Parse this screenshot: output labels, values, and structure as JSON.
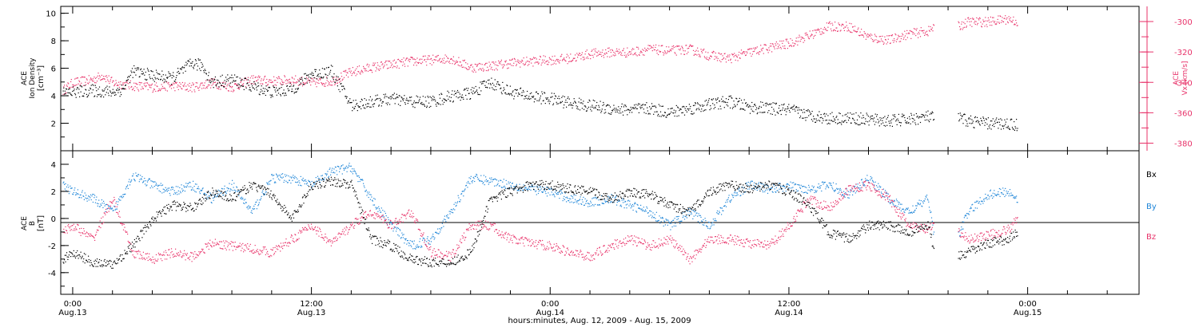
{
  "colors": {
    "black": "#000000",
    "pink": "#e8336a",
    "blue": "#1f86d8"
  },
  "x_axis": {
    "title": "hours:minutes, Aug. 12, 2009 - Aug. 15, 2009",
    "ticks": [
      {
        "line1": "0:00",
        "line2": "Aug.13"
      },
      {
        "line1": "12:00",
        "line2": "Aug.13"
      },
      {
        "line1": "0:00",
        "line2": "Aug.14"
      },
      {
        "line1": "12:00",
        "line2": "Aug.14"
      },
      {
        "line1": "0:00",
        "line2": "Aug.15"
      }
    ]
  },
  "chart_data": [
    {
      "type": "scatter",
      "x_unit": "hours from 2009-08-13 00:00",
      "xlim": [
        -0.6,
        53.6
      ],
      "left_axis": {
        "label_lines": [
          "ACE",
          "Ion Density",
          "[cm⁻³]"
        ],
        "ylim": [
          0,
          10.5
        ],
        "ticks": [
          2,
          4,
          6,
          8,
          10
        ]
      },
      "right_axis": {
        "label_lines": [
          "ACE",
          "Vx [km/s]"
        ],
        "ylim": [
          -385,
          -290
        ],
        "ticks": [
          -300,
          -320,
          -340,
          -360,
          -380
        ]
      },
      "series": [
        {
          "axis": "left",
          "color": "black",
          "x": [
            -0.5,
            0,
            1,
            2,
            2.5,
            3,
            4,
            5,
            6,
            6.5,
            7,
            8,
            9,
            10,
            11,
            12,
            13,
            14,
            15,
            16,
            17,
            18,
            19,
            20,
            21,
            22,
            23,
            24,
            25,
            26,
            27,
            28,
            29,
            30,
            31,
            32,
            33,
            34,
            35,
            36,
            37,
            38,
            39,
            40,
            41,
            42,
            43,
            43.3,
            44.5,
            45,
            46,
            47,
            47.5
          ],
          "y": [
            4.2,
            4.3,
            4.4,
            4.3,
            4.5,
            5.8,
            5.5,
            5.3,
            6.4,
            6.2,
            5.0,
            5.2,
            4.7,
            4.3,
            4.5,
            5.6,
            5.8,
            3.3,
            3.6,
            3.8,
            3.6,
            3.6,
            4.0,
            4.2,
            5.0,
            4.3,
            4.0,
            3.8,
            3.5,
            3.3,
            3.1,
            3.0,
            3.1,
            2.8,
            3.1,
            3.4,
            3.6,
            3.2,
            3.1,
            3.0,
            2.6,
            2.4,
            2.4,
            2.3,
            2.2,
            2.3,
            2.5,
            2.4,
            2.4,
            2.2,
            2.0,
            2.0,
            1.9
          ]
        },
        {
          "axis": "right",
          "color": "pink",
          "x": [
            -0.5,
            0,
            1,
            1.5,
            2,
            3,
            4,
            5,
            6,
            7,
            8,
            9,
            10,
            11,
            12,
            13,
            14,
            15,
            16,
            17,
            18,
            19,
            20,
            21,
            22,
            23,
            24,
            25,
            26,
            27,
            28,
            29,
            30,
            31,
            32,
            33,
            34,
            35,
            36,
            37,
            38,
            39,
            40,
            41,
            42,
            43,
            43.3,
            44.5,
            45,
            46,
            47,
            47.5
          ],
          "y": [
            -345,
            -340,
            -338,
            -335,
            -340,
            -342,
            -343,
            -342,
            -343,
            -340,
            -343,
            -338,
            -339,
            -338,
            -340,
            -339,
            -333,
            -330,
            -328,
            -326,
            -325,
            -324,
            -330,
            -329,
            -327,
            -326,
            -325,
            -324,
            -321,
            -320,
            -320,
            -318,
            -319,
            -318,
            -322,
            -324,
            -320,
            -317,
            -314,
            -309,
            -303,
            -303,
            -310,
            -312,
            -308,
            -306,
            -303,
            -303,
            -300,
            -300,
            -298,
            -300
          ]
        }
      ]
    },
    {
      "type": "scatter",
      "x_unit": "hours from 2009-08-13 00:00",
      "xlim": [
        -0.6,
        53.6
      ],
      "left_axis": {
        "label_lines": [
          "ACE",
          "B",
          "[nT]"
        ],
        "ylim": [
          -5.6,
          5.0
        ],
        "ticks": [
          -4,
          -2,
          0,
          2,
          4
        ]
      },
      "legend_position": "right",
      "series": [
        {
          "name": "Bx",
          "color": "black",
          "x": [
            -0.5,
            0,
            1,
            2,
            3,
            4,
            5,
            6,
            7,
            8,
            9,
            10,
            11,
            12,
            13,
            14,
            15,
            16,
            17,
            18,
            19,
            20,
            21,
            22,
            23,
            24,
            25,
            26,
            27,
            28,
            29,
            30,
            31,
            32,
            33,
            34,
            35,
            36,
            37,
            38,
            39,
            40,
            41,
            42,
            43,
            43.3,
            44.5,
            45,
            46,
            47,
            47.5
          ],
          "y": [
            -3,
            -2.5,
            -3.2,
            -3.4,
            -2,
            0,
            1,
            0.8,
            2,
            1.5,
            2.5,
            1.8,
            0,
            2.5,
            2.8,
            2.5,
            -1.5,
            -2,
            -3,
            -3.2,
            -3.2,
            -2.5,
            1.5,
            2,
            2.5,
            2.5,
            2.2,
            2,
            1.5,
            2,
            1.8,
            1,
            0.5,
            2,
            2.5,
            2.2,
            2.5,
            2,
            1,
            -1,
            -1.5,
            -0.5,
            -0.5,
            -1,
            -0.5,
            -2.5,
            -2.8,
            -2.5,
            -1.8,
            -1.5,
            -1
          ]
        },
        {
          "name": "By",
          "color": "blue",
          "x": [
            -0.5,
            0,
            1,
            2,
            3,
            4,
            5,
            6,
            7,
            8,
            9,
            10,
            11,
            12,
            13,
            14,
            15,
            16,
            17,
            18,
            19,
            20,
            21,
            22,
            23,
            24,
            25,
            26,
            27,
            28,
            29,
            30,
            31,
            32,
            33,
            34,
            35,
            36,
            37,
            38,
            39,
            40,
            41,
            42,
            43,
            43.3,
            44.5,
            45,
            46,
            47,
            47.5
          ],
          "y": [
            2.5,
            2,
            1.5,
            0.5,
            3.2,
            2.5,
            2,
            2.5,
            1.5,
            2.5,
            0.5,
            3,
            3,
            2.5,
            3.5,
            3.8,
            1.5,
            -0.5,
            -2,
            -1.5,
            0.5,
            3,
            2.8,
            2.5,
            2.2,
            2,
            1.5,
            1.2,
            1.5,
            1,
            0.5,
            -0.5,
            0.5,
            -0.5,
            1.5,
            2.5,
            2.2,
            2.4,
            2.2,
            2.5,
            1.8,
            3,
            1.5,
            0.5,
            1.5,
            -1.5,
            -1.2,
            0.5,
            1.8,
            2,
            1.5
          ]
        },
        {
          "name": "Bz",
          "color": "pink",
          "x": [
            -0.5,
            0,
            1,
            2,
            3,
            4,
            5,
            6,
            7,
            8,
            9,
            10,
            11,
            12,
            13,
            14,
            15,
            16,
            17,
            18,
            19,
            20,
            21,
            22,
            23,
            24,
            25,
            26,
            27,
            28,
            29,
            30,
            31,
            32,
            33,
            34,
            35,
            36,
            37,
            38,
            39,
            40,
            41,
            42,
            43,
            43.3,
            44.5,
            45,
            46,
            47,
            47.5
          ],
          "y": [
            -1,
            -0.5,
            -1.5,
            1.5,
            -2.5,
            -3,
            -2.5,
            -2.8,
            -1.8,
            -2,
            -2.2,
            -2.5,
            -1.5,
            -0.5,
            -1.8,
            -0.5,
            0.5,
            -0.5,
            0.5,
            -2.5,
            -2.8,
            -0.5,
            -0.5,
            -1.5,
            -1.8,
            -2,
            -2.5,
            -2.8,
            -2,
            -1.5,
            -2,
            -1.5,
            -3,
            -1.5,
            -1.5,
            -1.8,
            -2,
            -0.5,
            1.5,
            0.8,
            2.2,
            2.5,
            1.5,
            -0.5,
            -0.8,
            -0.5,
            -1,
            -1.5,
            -1.2,
            -0.8,
            0
          ]
        }
      ]
    }
  ]
}
